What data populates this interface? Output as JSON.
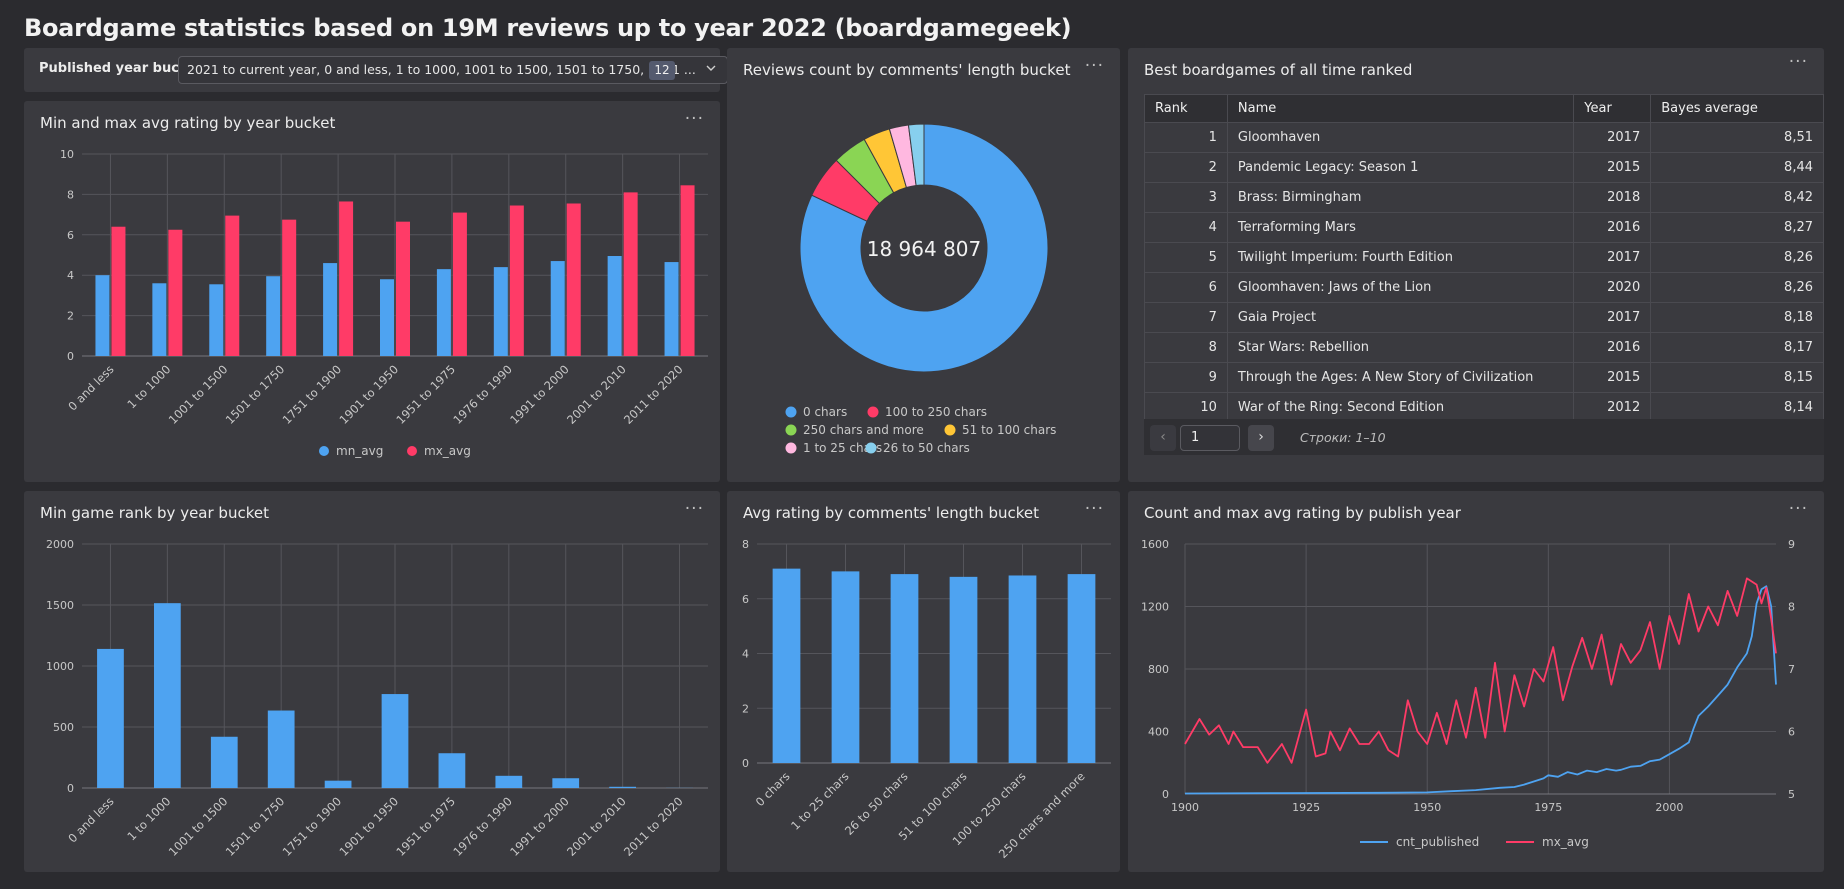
{
  "page_title": "Boardgame statistics based on 19M reviews up to year 2022 (boardgamegeek)",
  "selector": {
    "label": "Published year bucket",
    "value": "2021 to current year, 0 and less, 1 to 1000, 1001 to 1500, 1501 to 1750, 1751 ...",
    "count": "12",
    "chevron": "chevron-down-icon"
  },
  "menu_label": "···",
  "colors": {
    "blue": "#4ea3f1",
    "red": "#ff3b67",
    "green": "#8ad554",
    "yellow": "#ffc636",
    "pink": "#ffb8e0",
    "lightblue": "#87cfee"
  },
  "table": {
    "title": "Best boardgames of all time ranked",
    "columns": [
      "Rank",
      "Name",
      "Year",
      "Bayes average"
    ],
    "rows": [
      [
        "1",
        "Gloomhaven",
        "2017",
        "8,51"
      ],
      [
        "2",
        "Pandemic Legacy: Season 1",
        "2015",
        "8,44"
      ],
      [
        "3",
        "Brass: Birmingham",
        "2018",
        "8,42"
      ],
      [
        "4",
        "Terraforming Mars",
        "2016",
        "8,27"
      ],
      [
        "5",
        "Twilight Imperium: Fourth Edition",
        "2017",
        "8,26"
      ],
      [
        "6",
        "Gloomhaven: Jaws of the Lion",
        "2020",
        "8,26"
      ],
      [
        "7",
        "Gaia Project",
        "2017",
        "8,18"
      ],
      [
        "8",
        "Star Wars: Rebellion",
        "2016",
        "8,17"
      ],
      [
        "9",
        "Through the Ages: A New Story of Civilization",
        "2015",
        "8,15"
      ],
      [
        "10",
        "War of the Ring: Second Edition",
        "2012",
        "8,14"
      ]
    ],
    "pager": {
      "prev": "‹",
      "next": "›",
      "page": "1",
      "info": "Строки: 1–10"
    }
  },
  "chart_data": [
    {
      "id": "minmax",
      "type": "bar",
      "title": "Min and max avg rating by year bucket",
      "categories": [
        "0 and less",
        "1 to 1000",
        "1001 to 1500",
        "1501 to 1750",
        "1751 to 1900",
        "1901 to 1950",
        "1951 to 1975",
        "1976 to 1990",
        "1991 to 2000",
        "2001 to 2010",
        "2011 to 2020"
      ],
      "series": [
        {
          "name": "mn_avg",
          "color": "#4ea3f1",
          "values": [
            4.0,
            3.6,
            3.55,
            3.95,
            4.6,
            3.8,
            4.3,
            4.4,
            4.7,
            4.95,
            4.65
          ]
        },
        {
          "name": "mx_avg",
          "color": "#ff3b67",
          "values": [
            6.4,
            6.25,
            6.95,
            6.75,
            7.65,
            6.65,
            7.1,
            7.45,
            7.55,
            8.1,
            8.45
          ]
        }
      ],
      "yticks": [
        "0",
        "2",
        "4",
        "6",
        "8",
        "10"
      ],
      "ylim": [
        0,
        10
      ],
      "legend": "bottom"
    },
    {
      "id": "donut",
      "type": "pie",
      "title": "Reviews count by comments' length bucket",
      "center_label": "18 964 807",
      "slices": [
        {
          "name": "0 chars",
          "color": "#4ea3f1",
          "value": 82.0
        },
        {
          "name": "100 to 250 chars",
          "color": "#ff3b67",
          "value": 5.5
        },
        {
          "name": "250 chars and more",
          "color": "#8ad554",
          "value": 4.5
        },
        {
          "name": "51 to 100 chars",
          "color": "#ffc636",
          "value": 3.5
        },
        {
          "name": "1 to 25 chars",
          "color": "#ffb8e0",
          "value": 2.5
        },
        {
          "name": "26 to 50 chars",
          "color": "#87cfee",
          "value": 2.0
        }
      ],
      "legend": "bottom"
    },
    {
      "id": "minrank",
      "type": "bar",
      "title": "Min game rank by year bucket",
      "categories": [
        "0 and less",
        "1 to 1000",
        "1001 to 1500",
        "1501 to 1750",
        "1751 to 1900",
        "1901 to 1950",
        "1951 to 1975",
        "1976 to 1990",
        "1991 to 2000",
        "2001 to 2010",
        "2011 to 2020"
      ],
      "values": [
        1140,
        1515,
        420,
        635,
        60,
        770,
        285,
        100,
        80,
        10,
        1
      ],
      "yticks": [
        "0",
        "500",
        "1000",
        "1500",
        "2000"
      ],
      "ylim": [
        0,
        2000
      ]
    },
    {
      "id": "avgrating",
      "type": "bar",
      "title": "Avg rating by comments' length bucket",
      "categories": [
        "0 chars",
        "1 to 25 chars",
        "26 to 50 chars",
        "51 to 100 chars",
        "100 to 250 chars",
        "250 chars and more"
      ],
      "values": [
        7.1,
        7.0,
        6.9,
        6.8,
        6.85,
        6.9
      ],
      "yticks": [
        "0",
        "2",
        "4",
        "6",
        "8"
      ],
      "ylim": [
        0,
        8
      ]
    },
    {
      "id": "countmax",
      "type": "line",
      "title": "Count and max avg rating by publish year",
      "xlim": [
        1900,
        2022
      ],
      "xticks": [
        "1900",
        "1925",
        "1950",
        "1975",
        "2000"
      ],
      "yticks_left": [
        "0",
        "400",
        "800",
        "1200",
        "1600"
      ],
      "ylim_left": [
        0,
        1600
      ],
      "yticks_right": [
        "5",
        "6",
        "7",
        "8",
        "9"
      ],
      "ylim_right": [
        5,
        9
      ],
      "legend": "bottom",
      "series": [
        {
          "name": "cnt_published",
          "color": "#4ea3f1",
          "axis": "left",
          "x": [
            1900,
            1920,
            1940,
            1950,
            1955,
            1960,
            1965,
            1968,
            1970,
            1972,
            1974,
            1975,
            1977,
            1979,
            1981,
            1983,
            1985,
            1987,
            1989,
            1990,
            1992,
            1994,
            1996,
            1998,
            2000,
            2002,
            2004,
            2005,
            2006,
            2008,
            2010,
            2012,
            2014,
            2016,
            2017,
            2018,
            2019,
            2020,
            2021,
            2022
          ],
          "y": [
            3,
            6,
            8,
            10,
            18,
            25,
            40,
            45,
            60,
            80,
            100,
            120,
            110,
            140,
            125,
            150,
            140,
            160,
            150,
            155,
            175,
            180,
            210,
            220,
            255,
            290,
            330,
            420,
            500,
            560,
            630,
            700,
            810,
            900,
            1010,
            1220,
            1310,
            1330,
            1200,
            700
          ]
        },
        {
          "name": "mx_avg",
          "color": "#ff3b67",
          "axis": "right",
          "x": [
            1900,
            1903,
            1905,
            1907,
            1909,
            1910,
            1912,
            1915,
            1917,
            1918,
            1920,
            1922,
            1925,
            1927,
            1929,
            1930,
            1932,
            1934,
            1936,
            1938,
            1940,
            1942,
            1944,
            1946,
            1948,
            1950,
            1952,
            1954,
            1956,
            1958,
            1960,
            1962,
            1964,
            1966,
            1968,
            1970,
            1972,
            1974,
            1976,
            1978,
            1980,
            1982,
            1984,
            1986,
            1988,
            1990,
            1992,
            1994,
            1996,
            1998,
            2000,
            2002,
            2004,
            2006,
            2008,
            2010,
            2012,
            2014,
            2016,
            2018,
            2019,
            2020,
            2021,
            2022
          ],
          "y": [
            5.8,
            6.2,
            5.95,
            6.1,
            5.8,
            6.0,
            5.75,
            5.75,
            5.5,
            5.6,
            5.8,
            5.5,
            6.35,
            5.6,
            5.65,
            6.0,
            5.7,
            6.05,
            5.8,
            5.8,
            6.0,
            5.7,
            5.6,
            6.5,
            6.0,
            5.8,
            6.3,
            5.8,
            6.5,
            5.9,
            6.7,
            5.9,
            7.1,
            6.0,
            6.9,
            6.4,
            7.0,
            6.8,
            7.35,
            6.5,
            7.05,
            7.5,
            7.0,
            7.55,
            6.75,
            7.4,
            7.1,
            7.3,
            7.75,
            7.0,
            7.85,
            7.4,
            8.2,
            7.6,
            8.0,
            7.7,
            8.25,
            7.85,
            8.45,
            8.35,
            8.05,
            8.3,
            7.8,
            7.25
          ]
        }
      ]
    }
  ]
}
